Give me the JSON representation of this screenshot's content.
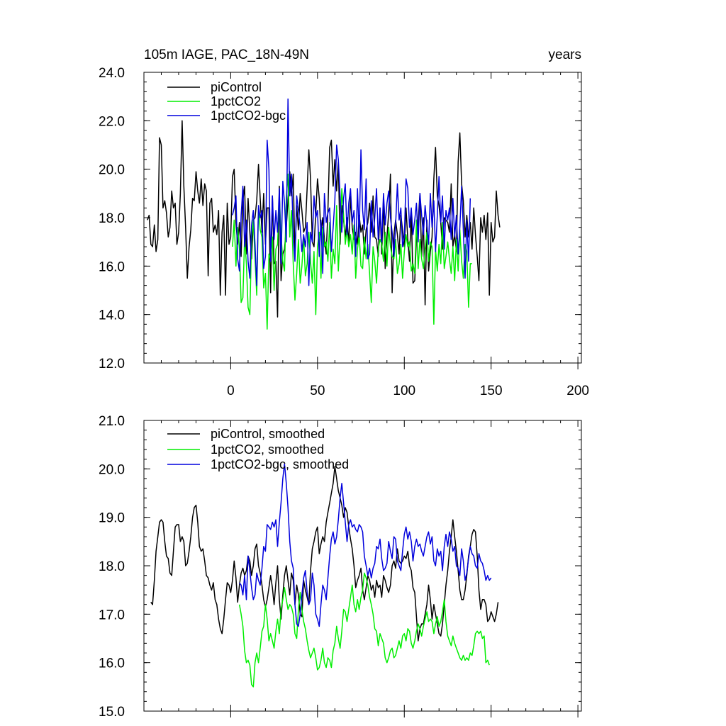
{
  "chart_data": [
    {
      "type": "line",
      "title_left": "105m IAGE, PAC_18N-49N",
      "title_right": "years",
      "xlim": [
        -50,
        202
      ],
      "ylim": [
        12,
        24
      ],
      "yticks": [
        "12.0",
        "14.0",
        "16.0",
        "18.0",
        "20.0",
        "22.0",
        "24.0"
      ],
      "xticks": [
        "0",
        "50",
        "100",
        "150",
        "200"
      ],
      "legend_position": "top-left",
      "series": [
        {
          "name": "piControl",
          "color": "#000000",
          "x_start": -48,
          "values": [
            17.9,
            18.1,
            16.9,
            16.8,
            17.7,
            16.6,
            17.1,
            21.3,
            21.0,
            18.4,
            18.7,
            18.2,
            17.2,
            17.6,
            19.1,
            18.4,
            18.6,
            16.9,
            17.4,
            19.0,
            22.0,
            19.3,
            17.6,
            15.5,
            16.8,
            17.5,
            18.8,
            18.7,
            19.9,
            19.1,
            18.6,
            19.6,
            18.5,
            19.4,
            19.1,
            15.6,
            18.6,
            18.8,
            17.4,
            17.7,
            17.3,
            18.3,
            14.8,
            17.4,
            18.1,
            14.8,
            18.6,
            16.9,
            17.2,
            19.7,
            20.0,
            17.8,
            16.9,
            17.8,
            16.4,
            18.7,
            19.3,
            16.5,
            18.8,
            17.4,
            16.3,
            17.9,
            18.0,
            18.7,
            20.2,
            18.8,
            17.4,
            19.0,
            16.9,
            18.4,
            18.4,
            14.9,
            18.9,
            16.1,
            16.2,
            13.9,
            19.3,
            15.4,
            16.5,
            16.7,
            17.6,
            18.7,
            19.9,
            18.9,
            19.8,
            16.4,
            18.5,
            17.5,
            19.0,
            18.3,
            17.4,
            17.6,
            19.2,
            20.8,
            19.6,
            17.0,
            16.8,
            18.2,
            19.6,
            18.8,
            17.3,
            18.0,
            17.1,
            16.5,
            18.3,
            20.9,
            21.2,
            19.3,
            20.4,
            19.1,
            20.3,
            16.9,
            18.5,
            17.9,
            17.2,
            18.0,
            16.9,
            18.9,
            17.6,
            17.1,
            17.4,
            16.9,
            18.1,
            17.4,
            17.7,
            16.5,
            17.5,
            17.8,
            18.6,
            17.4,
            18.9,
            17.2,
            17.1,
            16.4,
            18.4,
            16.5,
            18.8,
            15.9,
            17.2,
            18.2,
            19.8,
            14.9,
            17.3,
            17.9,
            17.3,
            16.5,
            18.1,
            17.5,
            16.8,
            18.4,
            17.1,
            16.2,
            18.3,
            15.3,
            15.4,
            17.2,
            17.8,
            19.0,
            16.4,
            18.0,
            14.4,
            17.9,
            15.8,
            16.6,
            17.2,
            19.6,
            20.9,
            18.9,
            18.5,
            17.8,
            16.7,
            18.0,
            17.9,
            17.8,
            17.4,
            19.4,
            16.8,
            17.3,
            16.6,
            20.3,
            21.5,
            19.4,
            18.7,
            17.2,
            18.1,
            17.2,
            17.8,
            16.7,
            18.4,
            17.3,
            16.4,
            15.4,
            18.0,
            17.4,
            18.1,
            17.1,
            18.2,
            14.8,
            17.8,
            17.0,
            17.2,
            19.1,
            18.1,
            17.6
          ]
        },
        {
          "name": "1pctCO2",
          "color": "#00ee00",
          "x_start": 1,
          "values": [
            16.8,
            17.9,
            16.0,
            17.6,
            16.7,
            14.5,
            14.7,
            17.2,
            16.1,
            14.3,
            14.0,
            17.1,
            17.9,
            16.3,
            14.8,
            18.4,
            17.5,
            17.2,
            15.1,
            15.7,
            13.4,
            16.5,
            16.3,
            17.2,
            15.0,
            16.7,
            16.9,
            18.9,
            17.3,
            16.2,
            15.8,
            18.8,
            19.8,
            17.2,
            18.3,
            16.1,
            14.6,
            15.7,
            17.1,
            15.3,
            16.0,
            17.2,
            15.6,
            16.1,
            17.4,
            16.2,
            15.3,
            16.6,
            14.0,
            16.8,
            17.4,
            15.5,
            17.6,
            16.8,
            17.0,
            16.2,
            17.8,
            15.5,
            16.7,
            16.1,
            18.5,
            15.8,
            17.3,
            19.2,
            18.1,
            16.9,
            17.5,
            16.8,
            17.3,
            16.5,
            17.7,
            15.5,
            16.7,
            17.3,
            16.0,
            15.9,
            17.2,
            16.3,
            16.9,
            15.7,
            14.5,
            16.8,
            16.2,
            15.3,
            16.7,
            17.1,
            16.9,
            16.2,
            17.4,
            16.0,
            17.6,
            16.8,
            16.4,
            16.3,
            17.1,
            15.7,
            16.1,
            16.9,
            15.5,
            16.6,
            17.3,
            16.8,
            17.0,
            15.8,
            16.1,
            15.7,
            17.9,
            15.9,
            17.1,
            16.3,
            15.9,
            16.7,
            17.4,
            16.2,
            17.0,
            16.8,
            13.6,
            16.7,
            15.8,
            16.9,
            16.1,
            17.8,
            15.9,
            16.4,
            17.0,
            16.3,
            15.7,
            16.8,
            15.4,
            17.1,
            15.8,
            17.5,
            16.2,
            15.5,
            16.9,
            16.6,
            14.3,
            16.1,
            16.1
          ]
        },
        {
          "name": "1pctCO2-bgc",
          "color": "#0000dd",
          "x_start": 1,
          "values": [
            18.1,
            18.4,
            18.9,
            16.3,
            15.8,
            18.1,
            19.3,
            16.8,
            17.9,
            16.2,
            15.5,
            17.7,
            18.3,
            16.9,
            15.2,
            18.5,
            18.0,
            18.3,
            15.9,
            16.4,
            21.2,
            20.0,
            16.2,
            18.9,
            17.1,
            18.3,
            17.4,
            19.2,
            16.1,
            19.5,
            18.6,
            17.0,
            22.9,
            18.9,
            19.8,
            17.3,
            16.2,
            18.9,
            18.3,
            17.6,
            16.6,
            17.3,
            16.8,
            17.8,
            15.2,
            17.4,
            17.0,
            18.9,
            18.0,
            18.3,
            16.4,
            17.9,
            15.7,
            19.0,
            17.8,
            18.2,
            18.4,
            16.6,
            17.6,
            18.7,
            21.0,
            20.4,
            18.9,
            17.4,
            18.8,
            19.4,
            17.3,
            18.6,
            19.2,
            17.8,
            18.3,
            16.4,
            19.2,
            17.2,
            20.8,
            18.3,
            17.5,
            19.6,
            16.3,
            16.5,
            18.7,
            17.2,
            18.0,
            19.2,
            17.1,
            18.4,
            17.0,
            19.0,
            17.7,
            18.6,
            19.1,
            18.0,
            17.4,
            16.4,
            17.7,
            19.4,
            17.9,
            18.4,
            16.8,
            17.2,
            19.6,
            19.2,
            17.6,
            18.4,
            17.3,
            17.9,
            18.6,
            17.0,
            19.0,
            18.1,
            17.3,
            18.5,
            17.7,
            16.9,
            19.0,
            17.6,
            18.7,
            16.6,
            18.1,
            19.7,
            17.8,
            18.9,
            16.7,
            18.3,
            17.9,
            18.4,
            17.1,
            18.8,
            17.2,
            18.1,
            16.5,
            17.6,
            19.3,
            17.5,
            15.5,
            17.9,
            16.2,
            18.8
          ]
        }
      ]
    },
    {
      "type": "line",
      "xlim": [
        -50,
        202
      ],
      "ylim": [
        15,
        21
      ],
      "yticks": [
        "15.0",
        "16.0",
        "17.0",
        "18.0",
        "19.0",
        "20.0",
        "21.0"
      ],
      "legend_position": "top-left",
      "series": [
        {
          "name": "piControl, smoothed",
          "color": "#000000",
          "x_start": -46,
          "values": [
            17.25,
            17.2,
            17.7,
            18.3,
            18.6,
            18.9,
            18.95,
            18.9,
            18.5,
            18.2,
            18.15,
            17.85,
            17.8,
            18.3,
            18.8,
            18.85,
            18.85,
            18.5,
            18.6,
            18.5,
            18.0,
            18.05,
            18.3,
            18.6,
            19.0,
            19.2,
            19.25,
            18.9,
            18.4,
            18.3,
            18.35,
            18.1,
            17.8,
            17.75,
            17.6,
            17.5,
            17.65,
            17.3,
            17.2,
            16.9,
            16.7,
            16.6,
            16.9,
            17.3,
            17.65,
            17.6,
            17.45,
            17.7,
            18.1,
            17.75,
            17.25,
            17.6,
            17.85,
            17.95,
            17.8,
            17.9,
            18.2,
            18.1,
            17.8,
            18.0,
            18.35,
            18.45,
            18.0,
            17.85,
            17.6,
            17.3,
            17.15,
            17.3,
            17.55,
            17.8,
            17.55,
            17.2,
            17.65,
            18.0,
            17.3,
            16.9,
            17.4,
            17.8,
            18.0,
            17.7,
            17.4,
            17.85,
            17.7,
            17.2,
            17.6,
            17.4,
            17.0,
            16.95,
            17.7,
            17.5,
            17.35,
            17.2,
            17.9,
            18.35,
            18.5,
            18.7,
            18.8,
            18.25,
            18.45,
            18.6,
            18.5,
            18.9,
            19.1,
            19.3,
            19.5,
            19.7,
            20.05,
            19.8,
            19.55,
            19.4,
            19.25,
            19.0,
            19.2,
            19.1,
            18.8,
            18.55,
            18.35,
            18.0,
            17.55,
            17.7,
            17.8,
            17.95,
            17.5,
            17.3,
            17.55,
            17.8,
            17.7,
            17.5,
            17.6,
            17.35,
            17.7,
            17.55,
            17.6,
            17.35,
            17.8,
            17.7,
            17.55,
            17.45,
            17.6,
            18.0,
            18.1,
            17.95,
            18.35,
            18.1,
            18.05,
            18.1,
            18.2,
            18.15,
            18.3,
            18.0,
            17.9,
            17.55,
            17.45,
            16.95,
            16.45,
            16.7,
            16.8,
            16.8,
            17.0,
            17.2,
            17.6,
            17.3,
            16.9,
            17.2,
            17.0,
            16.8,
            16.6,
            16.55,
            16.8,
            17.2,
            17.6,
            17.9,
            18.3,
            18.6,
            18.95,
            18.6,
            18.3,
            17.9,
            17.5,
            17.3,
            17.3,
            17.5,
            17.8,
            18.2,
            18.4,
            18.65,
            18.75,
            18.7,
            18.2,
            17.5,
            17.1,
            17.3,
            17.3,
            17.2,
            16.85,
            16.9,
            17.05,
            16.95,
            16.85,
            17.0,
            17.25
          ]
        },
        {
          "name": "1pctCO2, smoothed",
          "color": "#00ee00",
          "x_start": 5,
          "values": [
            17.2,
            17.0,
            16.75,
            16.25,
            16.0,
            16.05,
            15.95,
            15.55,
            15.5,
            16.0,
            16.2,
            16.0,
            16.3,
            16.65,
            16.75,
            17.2,
            16.9,
            16.45,
            16.6,
            16.45,
            16.3,
            16.65,
            16.9,
            16.6,
            17.1,
            17.3,
            17.55,
            17.3,
            17.1,
            17.2,
            17.15,
            17.0,
            16.6,
            16.5,
            17.1,
            17.45,
            17.1,
            16.85,
            16.7,
            16.45,
            16.25,
            16.1,
            16.2,
            16.3,
            16.1,
            15.85,
            15.9,
            16.05,
            16.3,
            16.0,
            15.9,
            16.1,
            16.05,
            15.9,
            16.25,
            16.4,
            16.75,
            16.5,
            16.3,
            16.65,
            17.1,
            17.05,
            16.85,
            17.1,
            17.35,
            17.6,
            17.2,
            17.05,
            17.3,
            17.1,
            17.35,
            17.5,
            17.85,
            17.75,
            17.6,
            17.35,
            17.2,
            17.0,
            16.7,
            16.65,
            16.35,
            16.6,
            16.5,
            16.4,
            16.1,
            16.0,
            16.1,
            16.25,
            16.3,
            16.1,
            16.15,
            16.3,
            16.45,
            16.3,
            16.55,
            16.6,
            16.45,
            16.7,
            16.65,
            16.4,
            16.3,
            16.45,
            16.65,
            16.8,
            16.7,
            16.55,
            16.75,
            16.9,
            17.05,
            16.85,
            16.9,
            16.85,
            16.6,
            16.8,
            16.95,
            16.75,
            16.85,
            17.05,
            17.3,
            16.85,
            16.55,
            16.45,
            16.35,
            16.55,
            16.4,
            16.3,
            16.2,
            16.1,
            16.05,
            16.15,
            16.05,
            16.1,
            16.05,
            16.2,
            16.15,
            16.35,
            16.6,
            16.65,
            16.6,
            16.65,
            16.5,
            16.55,
            16.0,
            16.05,
            15.95
          ]
        },
        {
          "name": "1pctCO2-bgc, smoothed",
          "color": "#0000dd",
          "x_start": 5,
          "values": [
            17.65,
            17.6,
            17.4,
            17.8,
            17.3,
            18.2,
            17.9,
            17.55,
            17.3,
            17.4,
            17.85,
            17.7,
            17.6,
            17.95,
            18.4,
            18.3,
            18.85,
            18.8,
            18.75,
            18.9,
            18.8,
            18.95,
            18.4,
            18.9,
            19.3,
            19.8,
            20.1,
            19.7,
            19.2,
            18.5,
            18.1,
            17.95,
            17.2,
            16.8,
            16.75,
            17.0,
            17.4,
            17.75,
            17.9,
            17.45,
            17.2,
            17.3,
            17.85,
            17.6,
            17.0,
            16.9,
            16.75,
            17.2,
            17.6,
            17.5,
            17.3,
            17.75,
            18.2,
            18.55,
            18.7,
            18.45,
            18.6,
            18.95,
            19.4,
            19.7,
            19.3,
            18.9,
            18.5,
            18.85,
            18.95,
            18.8,
            18.85,
            18.75,
            18.7,
            18.85,
            18.8,
            18.7,
            18.2,
            18.0,
            17.8,
            17.95,
            17.75,
            17.95,
            18.05,
            18.4,
            18.35,
            18.55,
            18.15,
            17.9,
            17.95,
            18.05,
            18.5,
            18.3,
            18.15,
            18.6,
            18.55,
            18.1,
            18.0,
            17.9,
            18.3,
            18.65,
            18.8,
            18.55,
            18.7,
            18.5,
            18.1,
            18.4,
            18.55,
            18.4,
            18.45,
            18.3,
            18.2,
            18.4,
            18.6,
            18.7,
            18.45,
            18.6,
            18.1,
            18.0,
            18.35,
            18.2,
            18.3,
            17.9,
            18.4,
            18.65,
            18.4,
            18.7,
            18.55,
            18.3,
            18.4,
            18.0,
            17.95,
            17.8,
            18.35,
            18.1,
            17.7,
            17.85,
            18.15,
            18.4,
            18.25,
            18.2,
            18.0,
            17.95,
            18.25,
            18.1,
            18.05,
            17.9,
            17.7,
            17.8,
            17.7,
            17.75
          ]
        }
      ]
    }
  ]
}
